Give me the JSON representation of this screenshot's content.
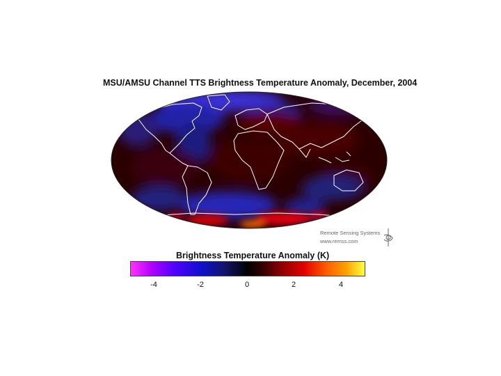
{
  "figure": {
    "title": "MSU/AMSU Channel TTS Brightness Temperature Anomaly, December, 2004"
  },
  "map": {
    "projection": "mollweide-like ellipse",
    "coastline_color": "#ffffff",
    "dominant_colors": [
      "#3a0000",
      "#14146a",
      "#2020d0",
      "#e00000"
    ]
  },
  "credit": {
    "line1": "Remote Sensing Systems",
    "line2": "www.remss.com",
    "logo_icon": "rss-logo-icon"
  },
  "colorbar": {
    "title": "Brightness Temperature Anomaly (K)",
    "min": -5,
    "max": 5,
    "ticks": [
      "-4",
      "-2",
      "0",
      "2",
      "4"
    ],
    "tick_values": [
      -4,
      -2,
      0,
      2,
      4
    ],
    "colors": [
      "#ff33ff",
      "#b000ff",
      "#5500ff",
      "#1010d0",
      "#14146a",
      "#000000",
      "#3a0000",
      "#8a0000",
      "#e00000",
      "#ff6000",
      "#ffa000",
      "#ffff40"
    ]
  }
}
